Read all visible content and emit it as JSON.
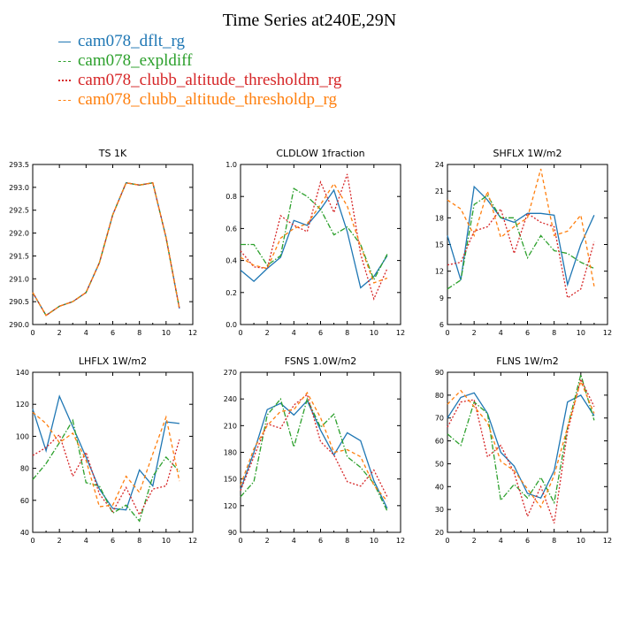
{
  "title": "Time Series at240E,29N",
  "legend": [
    {
      "name": "cam078_dflt_rg",
      "color": "#1f77b4",
      "dash": "solid"
    },
    {
      "name": "cam078_expldiff",
      "color": "#2ca02c",
      "dash": "dashdot"
    },
    {
      "name": "cam078_clubb_altitude_thresholdm_rg",
      "color": "#d62728",
      "dash": "dotted"
    },
    {
      "name": "cam078_clubb_altitude_thresholdp_rg",
      "color": "#ff7f0e",
      "dash": "dashed"
    }
  ],
  "chart_data": [
    {
      "type": "line",
      "title": "TS   1K",
      "x": [
        0,
        1,
        2,
        3,
        4,
        5,
        6,
        7,
        8,
        9,
        10,
        11
      ],
      "xlim": [
        0,
        12
      ],
      "xticks": [
        0,
        2,
        4,
        6,
        8,
        10,
        12
      ],
      "ylim": [
        290.0,
        293.5
      ],
      "yticks": [
        "290.0",
        "290.5",
        "291.0",
        "291.5",
        "292.0",
        "292.5",
        "293.0",
        "293.5"
      ],
      "series": [
        {
          "name": "cam078_dflt_rg",
          "values": [
            290.7,
            290.2,
            290.4,
            290.5,
            290.7,
            291.35,
            292.4,
            293.1,
            293.05,
            293.1,
            291.9,
            290.35
          ]
        },
        {
          "name": "cam078_expldiff",
          "values": [
            290.7,
            290.2,
            290.4,
            290.5,
            290.7,
            291.35,
            292.4,
            293.1,
            293.05,
            293.1,
            291.9,
            290.35
          ]
        },
        {
          "name": "cam078_clubb_altitude_thresholdm_rg",
          "values": [
            290.7,
            290.2,
            290.4,
            290.5,
            290.7,
            291.35,
            292.4,
            293.1,
            293.05,
            293.1,
            291.9,
            290.35
          ]
        },
        {
          "name": "cam078_clubb_altitude_thresholdp_rg",
          "values": [
            290.7,
            290.2,
            290.4,
            290.5,
            290.7,
            291.35,
            292.4,
            293.1,
            293.05,
            293.1,
            291.9,
            290.35
          ]
        }
      ]
    },
    {
      "type": "line",
      "title": "CLDLOW   1fraction",
      "x": [
        0,
        1,
        2,
        3,
        4,
        5,
        6,
        7,
        8,
        9,
        10,
        11
      ],
      "xlim": [
        0,
        12
      ],
      "xticks": [
        0,
        2,
        4,
        6,
        8,
        10,
        12
      ],
      "ylim": [
        0.0,
        1.0
      ],
      "yticks": [
        "0.0",
        "0.2",
        "0.4",
        "0.6",
        "0.8",
        "1.0"
      ],
      "series": [
        {
          "name": "cam078_dflt_rg",
          "values": [
            0.34,
            0.27,
            0.35,
            0.42,
            0.65,
            0.62,
            0.72,
            0.84,
            0.58,
            0.23,
            0.3,
            0.43
          ]
        },
        {
          "name": "cam078_expldiff",
          "values": [
            0.5,
            0.5,
            0.37,
            0.43,
            0.85,
            0.8,
            0.72,
            0.56,
            0.61,
            0.5,
            0.28,
            0.44
          ]
        },
        {
          "name": "cam078_clubb_altitude_thresholdm_rg",
          "values": [
            0.46,
            0.36,
            0.35,
            0.68,
            0.62,
            0.58,
            0.89,
            0.7,
            0.94,
            0.44,
            0.16,
            0.35
          ]
        },
        {
          "name": "cam078_clubb_altitude_thresholdp_rg",
          "values": [
            0.42,
            0.37,
            0.35,
            0.54,
            0.6,
            0.63,
            0.75,
            0.88,
            0.74,
            0.49,
            0.26,
            0.29
          ]
        }
      ]
    },
    {
      "type": "line",
      "title": "SHFLX   1W/m2",
      "x": [
        0,
        1,
        2,
        3,
        4,
        5,
        6,
        7,
        8,
        9,
        10,
        11
      ],
      "xlim": [
        0,
        12
      ],
      "xticks": [
        0,
        2,
        4,
        6,
        8,
        10,
        12
      ],
      "ylim": [
        6,
        24
      ],
      "yticks": [
        "6",
        "9",
        "12",
        "15",
        "18",
        "21",
        "24"
      ],
      "series": [
        {
          "name": "cam078_dflt_rg",
          "values": [
            16.0,
            11.0,
            21.5,
            20.0,
            18.0,
            17.5,
            18.5,
            18.5,
            18.3,
            10.5,
            15.0,
            18.3
          ]
        },
        {
          "name": "cam078_expldiff",
          "values": [
            10.0,
            11.0,
            19.5,
            20.5,
            18.0,
            18.0,
            13.5,
            16.0,
            14.3,
            14.0,
            13.0,
            12.3
          ]
        },
        {
          "name": "cam078_clubb_altitude_thresholdm_rg",
          "values": [
            12.7,
            13.0,
            16.5,
            17.0,
            19.0,
            14.0,
            18.5,
            17.5,
            17.0,
            9.0,
            10.0,
            15.3
          ]
        },
        {
          "name": "cam078_clubb_altitude_thresholdp_rg",
          "values": [
            20.0,
            19.0,
            16.0,
            21.0,
            15.8,
            17.0,
            18.0,
            23.5,
            16.0,
            16.5,
            18.3,
            10.3
          ]
        }
      ]
    },
    {
      "type": "line",
      "title": "LHFLX   1W/m2",
      "x": [
        0,
        1,
        2,
        3,
        4,
        5,
        6,
        7,
        8,
        9,
        10,
        11
      ],
      "xlim": [
        0,
        12
      ],
      "xticks": [
        0,
        2,
        4,
        6,
        8,
        10,
        12
      ],
      "ylim": [
        40,
        140
      ],
      "yticks": [
        "40",
        "60",
        "80",
        "100",
        "120",
        "140"
      ],
      "series": [
        {
          "name": "cam078_dflt_rg",
          "values": [
            117,
            91,
            125,
            106,
            87,
            67,
            55,
            54,
            79,
            69,
            109,
            108
          ]
        },
        {
          "name": "cam078_expldiff",
          "values": [
            73,
            83,
            96,
            110,
            71,
            69,
            52,
            57,
            47,
            75,
            87,
            78
          ]
        },
        {
          "name": "cam078_clubb_altitude_thresholdm_rg",
          "values": [
            88,
            93,
            101,
            75,
            90,
            64,
            53,
            68,
            51,
            67,
            69,
            98
          ]
        },
        {
          "name": "cam078_clubb_altitude_thresholdp_rg",
          "values": [
            115,
            108,
            96,
            102,
            85,
            56,
            57,
            75,
            65,
            89,
            112,
            72
          ]
        }
      ]
    },
    {
      "type": "line",
      "title": "FSNS   1.0W/m2",
      "x": [
        0,
        1,
        2,
        3,
        4,
        5,
        6,
        7,
        8,
        9,
        10,
        11
      ],
      "xlim": [
        0,
        12
      ],
      "xticks": [
        0,
        2,
        4,
        6,
        8,
        10,
        12
      ],
      "ylim": [
        90,
        270
      ],
      "yticks": [
        "90",
        "120",
        "150",
        "180",
        "210",
        "240",
        "270"
      ],
      "series": [
        {
          "name": "cam078_dflt_rg",
          "values": [
            138,
            180,
            228,
            235,
            222,
            238,
            205,
            177,
            202,
            193,
            148,
            117
          ]
        },
        {
          "name": "cam078_expldiff",
          "values": [
            130,
            147,
            222,
            240,
            186,
            240,
            208,
            223,
            175,
            163,
            145,
            114
          ]
        },
        {
          "name": "cam078_clubb_altitude_thresholdm_rg",
          "values": [
            137,
            175,
            212,
            207,
            233,
            245,
            192,
            177,
            147,
            142,
            160,
            130
          ]
        },
        {
          "name": "cam078_clubb_altitude_thresholdp_rg",
          "values": [
            143,
            184,
            210,
            226,
            228,
            247,
            219,
            180,
            183,
            175,
            143,
            125
          ]
        }
      ]
    },
    {
      "type": "line",
      "title": "FLNS   1W/m2",
      "x": [
        0,
        1,
        2,
        3,
        4,
        5,
        6,
        7,
        8,
        9,
        10,
        11
      ],
      "xlim": [
        0,
        12
      ],
      "xticks": [
        0,
        2,
        4,
        6,
        8,
        10,
        12
      ],
      "ylim": [
        20,
        90
      ],
      "yticks": [
        "20",
        "30",
        "40",
        "50",
        "60",
        "70",
        "80",
        "90"
      ],
      "series": [
        {
          "name": "cam078_dflt_rg",
          "values": [
            70,
            79,
            81,
            72,
            55,
            49,
            37,
            35,
            47,
            77,
            80,
            71
          ]
        },
        {
          "name": "cam078_expldiff",
          "values": [
            63,
            58,
            77,
            72,
            34,
            41,
            35,
            44,
            33,
            66,
            89,
            69
          ]
        },
        {
          "name": "cam078_clubb_altitude_thresholdm_rg",
          "values": [
            66,
            77,
            78,
            53,
            58,
            46,
            27,
            40,
            24,
            64,
            87,
            75
          ]
        },
        {
          "name": "cam078_clubb_altitude_thresholdp_rg",
          "values": [
            76,
            82,
            75,
            68,
            51,
            47,
            39,
            31,
            45,
            66,
            86,
            72
          ]
        }
      ]
    }
  ]
}
